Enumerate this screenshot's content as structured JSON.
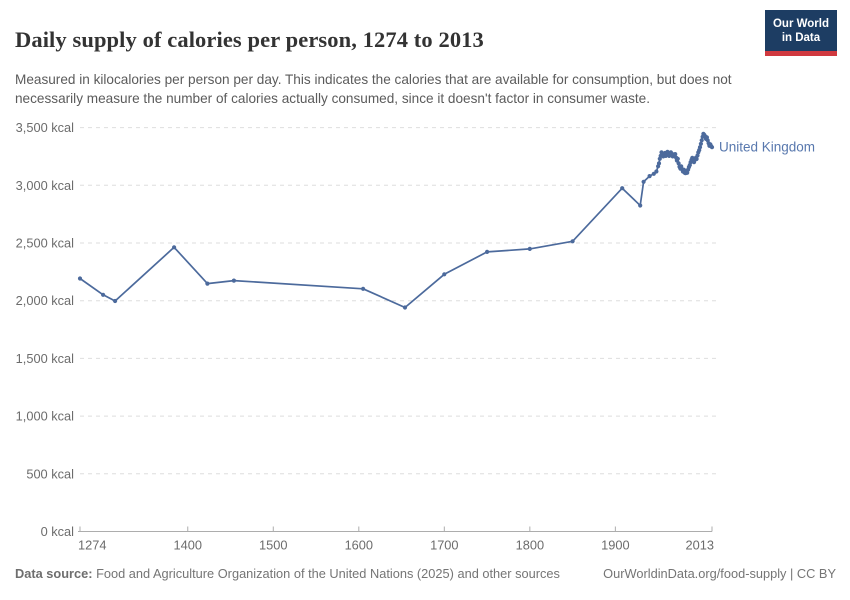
{
  "header": {
    "title": "Daily supply of calories per person, 1274 to 2013",
    "subtitle": "Measured in kilocalories per person per day. This indicates the calories that are available for consumption, but does not necessarily measure the number of calories actually consumed, since it doesn't factor in consumer waste."
  },
  "logo": {
    "line1": "Our World",
    "line2": "in Data"
  },
  "chart_data": {
    "type": "line",
    "title": "Daily supply of calories per person, 1274 to 2013",
    "xlabel": "",
    "ylabel": "",
    "unit": "kcal",
    "grid": true,
    "legend_position": "end-of-line",
    "x_range": [
      1274,
      2013
    ],
    "y_range": [
      0,
      3500
    ],
    "x_ticks": [
      1274,
      1400,
      1500,
      1600,
      1700,
      1800,
      1900,
      2013
    ],
    "y_ticks": [
      0,
      500,
      1000,
      1500,
      2000,
      2500,
      3000,
      3500
    ],
    "y_tick_labels": [
      "0 kcal",
      "500 kcal",
      "1,000 kcal",
      "1,500 kcal",
      "2,000 kcal",
      "2,500 kcal",
      "3,000 kcal",
      "3,500 kcal"
    ],
    "series": [
      {
        "name": "United Kingdom",
        "color": "#4C6A9C",
        "label_color": "#5878AE",
        "points": [
          [
            1274,
            2192
          ],
          [
            1301,
            2051
          ],
          [
            1315,
            1997
          ],
          [
            1384,
            2463
          ],
          [
            1423,
            2148
          ],
          [
            1454,
            2174
          ],
          [
            1605,
            2103
          ],
          [
            1654,
            1941
          ],
          [
            1700,
            2229
          ],
          [
            1750,
            2423
          ],
          [
            1800,
            2449
          ],
          [
            1850,
            2515
          ],
          [
            1908,
            2975
          ],
          [
            1929,
            2825
          ],
          [
            1933,
            3030
          ],
          [
            1940,
            3080
          ],
          [
            1945,
            3100
          ],
          [
            1948,
            3120
          ],
          [
            1950,
            3165
          ],
          [
            1951,
            3190
          ],
          [
            1952,
            3230
          ],
          [
            1953,
            3255
          ],
          [
            1954,
            3285
          ],
          [
            1955,
            3270
          ],
          [
            1956,
            3250
          ],
          [
            1957,
            3265
          ],
          [
            1958,
            3280
          ],
          [
            1959,
            3255
          ],
          [
            1960,
            3270
          ],
          [
            1961,
            3290
          ],
          [
            1962,
            3270
          ],
          [
            1963,
            3255
          ],
          [
            1964,
            3270
          ],
          [
            1965,
            3285
          ],
          [
            1966,
            3265
          ],
          [
            1967,
            3250
          ],
          [
            1968,
            3268
          ],
          [
            1969,
            3255
          ],
          [
            1970,
            3270
          ],
          [
            1971,
            3240
          ],
          [
            1972,
            3215
          ],
          [
            1973,
            3230
          ],
          [
            1974,
            3190
          ],
          [
            1975,
            3160
          ],
          [
            1976,
            3145
          ],
          [
            1977,
            3165
          ],
          [
            1978,
            3140
          ],
          [
            1979,
            3120
          ],
          [
            1980,
            3135
          ],
          [
            1981,
            3110
          ],
          [
            1982,
            3105
          ],
          [
            1983,
            3125
          ],
          [
            1984,
            3108
          ],
          [
            1985,
            3135
          ],
          [
            1986,
            3158
          ],
          [
            1987,
            3175
          ],
          [
            1988,
            3200
          ],
          [
            1989,
            3220
          ],
          [
            1990,
            3238
          ],
          [
            1991,
            3215
          ],
          [
            1992,
            3200
          ],
          [
            1993,
            3220
          ],
          [
            1994,
            3238
          ],
          [
            1995,
            3228
          ],
          [
            1996,
            3258
          ],
          [
            1997,
            3285
          ],
          [
            1998,
            3305
          ],
          [
            1999,
            3330
          ],
          [
            2000,
            3360
          ],
          [
            2001,
            3390
          ],
          [
            2002,
            3420
          ],
          [
            2003,
            3445
          ],
          [
            2004,
            3438
          ],
          [
            2005,
            3425
          ],
          [
            2006,
            3402
          ],
          [
            2007,
            3415
          ],
          [
            2008,
            3390
          ],
          [
            2009,
            3365
          ],
          [
            2010,
            3342
          ],
          [
            2011,
            3355
          ],
          [
            2012,
            3340
          ],
          [
            2013,
            3330
          ]
        ]
      }
    ]
  },
  "footer": {
    "datasource_label": "Data source:",
    "datasource_text": " Food and Agriculture Organization of the United Nations (2025) and other sources",
    "link": "OurWorldinData.org/food-supply",
    "license": " | CC BY"
  },
  "colors": {
    "line": "#4C6A9C",
    "entity_label": "#5878AE",
    "gridline": "#dedede",
    "axis": "#adadad",
    "tick_label": "#6c6c6c",
    "logo_bg": "#1d3d63",
    "logo_red": "#d0393f"
  }
}
